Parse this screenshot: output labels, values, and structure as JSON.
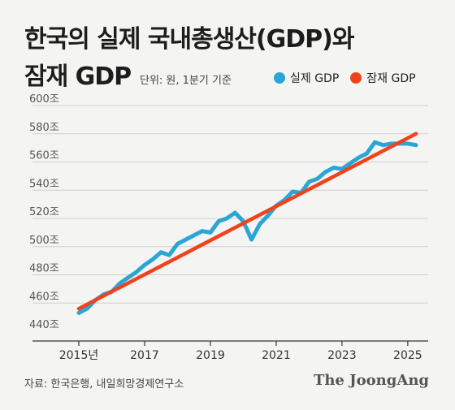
{
  "header": {
    "title_line1": "한국의 실제 국내총생산(GDP)와",
    "title_line2": "잠재 GDP",
    "unit_note": "단위: 원, 1분기 기준"
  },
  "legend": [
    {
      "label": "실제 GDP",
      "color": "#29a6d6"
    },
    {
      "label": "잠재 GDP",
      "color": "#f0421c"
    }
  ],
  "footer": {
    "source": "자료: 한국은행, 내일희망경제연구소",
    "brand": "The JoongAng"
  },
  "chart_data": {
    "type": "line",
    "ylim": [
      440,
      600
    ],
    "yticks": [
      "440조",
      "460조",
      "480조",
      "500조",
      "520조",
      "540조",
      "560조",
      "580조",
      "600조"
    ],
    "ytick_values": [
      440,
      460,
      480,
      500,
      520,
      540,
      560,
      580,
      600
    ],
    "xlim": [
      2015.0,
      2025.25
    ],
    "xticks": [
      "2015년",
      "2017",
      "2019",
      "2021",
      "2023",
      "2025"
    ],
    "xtick_values": [
      2015,
      2017,
      2019,
      2021,
      2023,
      2025
    ],
    "grid": true,
    "legend_position": "top-right",
    "series": [
      {
        "name": "실제 GDP",
        "color": "#29a6d6",
        "x": [
          2015.0,
          2015.25,
          2015.5,
          2015.75,
          2016.0,
          2016.25,
          2016.5,
          2016.75,
          2017.0,
          2017.25,
          2017.5,
          2017.75,
          2018.0,
          2018.25,
          2018.5,
          2018.75,
          2019.0,
          2019.25,
          2019.5,
          2019.75,
          2020.0,
          2020.25,
          2020.5,
          2020.75,
          2021.0,
          2021.25,
          2021.5,
          2021.75,
          2022.0,
          2022.25,
          2022.5,
          2022.75,
          2023.0,
          2023.25,
          2023.5,
          2023.75,
          2024.0,
          2024.25,
          2024.5,
          2024.75,
          2025.0,
          2025.25
        ],
        "y": [
          453,
          456,
          462,
          466,
          468,
          474,
          478,
          482,
          487,
          491,
          496,
          494,
          502,
          505,
          508,
          511,
          510,
          518,
          520,
          524,
          518,
          505,
          516,
          522,
          529,
          533,
          539,
          538,
          546,
          548,
          553,
          556,
          555,
          559,
          563,
          566,
          574,
          572,
          573,
          573,
          573,
          572
        ]
      },
      {
        "name": "잠재 GDP",
        "color": "#f0421c",
        "x": [
          2015.0,
          2025.25
        ],
        "y": [
          456,
          580
        ]
      }
    ]
  }
}
